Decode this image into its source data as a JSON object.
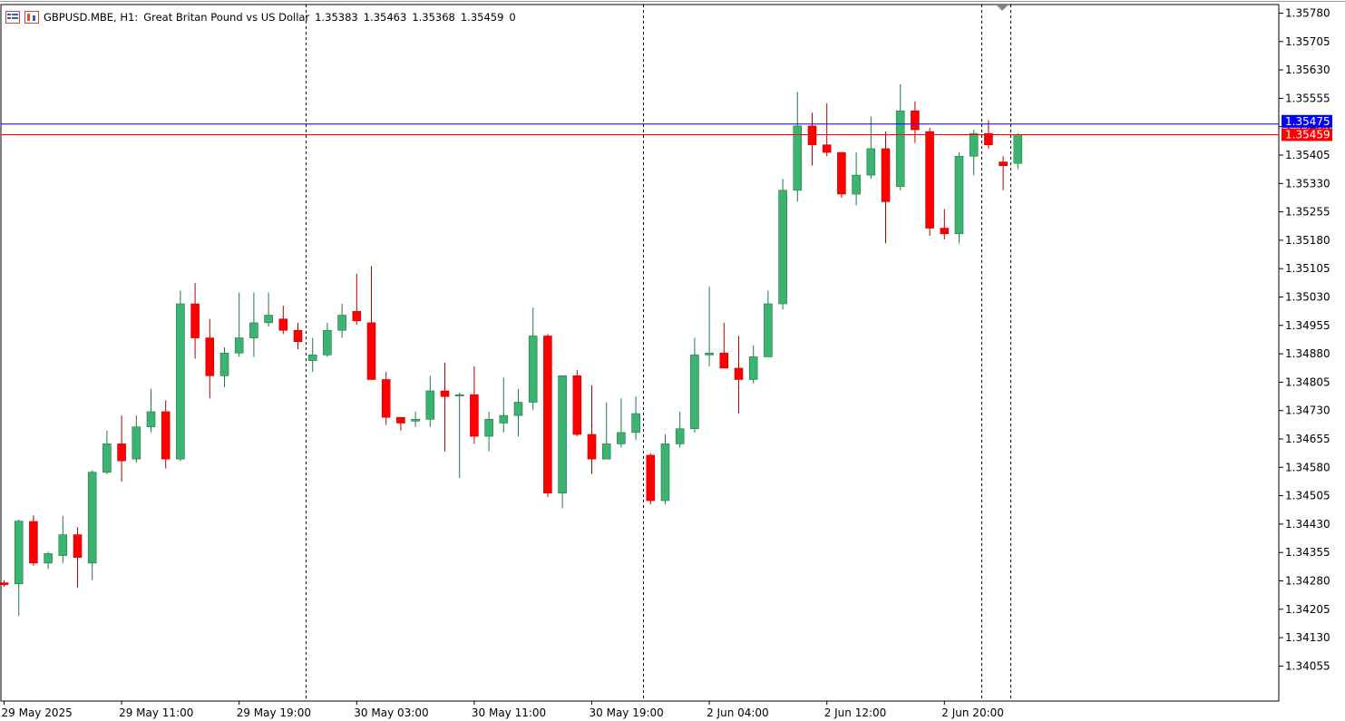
{
  "header": {
    "symbol": "GBPUSD.MBE, H1:",
    "description": "Great Britan Pound vs US Dollar",
    "open": "1.35383",
    "high": "1.35463",
    "low": "1.35368",
    "close": "1.35459",
    "volume": "0",
    "icons": [
      "chart-list-icon",
      "bar-chart-icon"
    ]
  },
  "colors": {
    "bull": "#3cb371",
    "bear": "#ff0000",
    "bid_line": "#0000ff",
    "last_line": "#ff0000",
    "grid": "#000000",
    "axis": "#000000"
  },
  "chart_data": {
    "type": "candlestick",
    "timeframe": "H1",
    "ylim": [
      1.3398,
      1.358
    ],
    "y_ticks": [
      "1.35780",
      "1.35705",
      "1.35630",
      "1.35555",
      "1.35480",
      "1.35405",
      "1.35330",
      "1.35255",
      "1.35180",
      "1.35105",
      "1.35030",
      "1.34955",
      "1.34880",
      "1.34805",
      "1.34730",
      "1.34655",
      "1.34580",
      "1.34505",
      "1.34430",
      "1.34355",
      "1.34280",
      "1.34205",
      "1.34130",
      "1.34055"
    ],
    "x_labels": [
      "29 May 2025",
      "29 May 11:00",
      "29 May 19:00",
      "30 May 03:00",
      "30 May 11:00",
      "30 May 19:00",
      "2 Jun 04:00",
      "2 Jun 12:00",
      "2 Jun 20:00"
    ],
    "period_separators_after_candle": [
      20,
      43,
      66
    ],
    "price_labels": {
      "bid": {
        "value": 1.35475,
        "text": "1.35475"
      },
      "last": {
        "value": 1.35459,
        "text": "1.35459"
      }
    },
    "candles": [
      [
        1.34275,
        1.34282,
        1.34265,
        1.3427
      ],
      [
        1.34272,
        1.34442,
        1.34188,
        1.34438
      ],
      [
        1.34437,
        1.34453,
        1.3432,
        1.34327
      ],
      [
        1.34327,
        1.34357,
        1.34312,
        1.34352
      ],
      [
        1.34347,
        1.34452,
        1.34327,
        1.34402
      ],
      [
        1.34402,
        1.34422,
        1.34262,
        1.34342
      ],
      [
        1.34327,
        1.34572,
        1.34282,
        1.34567
      ],
      [
        1.34567,
        1.34677,
        1.34562,
        1.34642
      ],
      [
        1.34642,
        1.34717,
        1.34542,
        1.34597
      ],
      [
        1.34602,
        1.34717,
        1.34592,
        1.34687
      ],
      [
        1.34687,
        1.34787,
        1.34672,
        1.34727
      ],
      [
        1.34727,
        1.34757,
        1.34577,
        1.34602
      ],
      [
        1.34602,
        1.35047,
        1.34597,
        1.35012
      ],
      [
        1.35012,
        1.35067,
        1.34867,
        1.34922
      ],
      [
        1.34922,
        1.34972,
        1.34762,
        1.34822
      ],
      [
        1.34822,
        1.34897,
        1.34792,
        1.34882
      ],
      [
        1.34882,
        1.35042,
        1.34872,
        1.34922
      ],
      [
        1.34922,
        1.35042,
        1.34872,
        1.34962
      ],
      [
        1.34962,
        1.35042,
        1.34952,
        1.34982
      ],
      [
        1.34972,
        1.35007,
        1.34932,
        1.34942
      ],
      [
        1.34942,
        1.34962,
        1.34892,
        1.34912
      ],
      [
        1.34862,
        1.34922,
        1.34832,
        1.34877
      ],
      [
        1.34877,
        1.34962,
        1.34872,
        1.34942
      ],
      [
        1.34942,
        1.35012,
        1.34922,
        1.34982
      ],
      [
        1.34992,
        1.35092,
        1.34957,
        1.34967
      ],
      [
        1.34962,
        1.35112,
        1.34812,
        1.34812
      ],
      [
        1.34812,
        1.34832,
        1.34692,
        1.34712
      ],
      [
        1.34712,
        1.34712,
        1.34677,
        1.34697
      ],
      [
        1.34702,
        1.34727,
        1.34687,
        1.34707
      ],
      [
        1.34707,
        1.34822,
        1.34687,
        1.34782
      ],
      [
        1.34782,
        1.34857,
        1.34622,
        1.34767
      ],
      [
        1.34772,
        1.34777,
        1.34552,
        1.34772
      ],
      [
        1.34772,
        1.34847,
        1.34642,
        1.34662
      ],
      [
        1.34662,
        1.34727,
        1.34622,
        1.34707
      ],
      [
        1.34697,
        1.34817,
        1.34672,
        1.34717
      ],
      [
        1.34717,
        1.34787,
        1.34662,
        1.34752
      ],
      [
        1.34752,
        1.35002,
        1.34732,
        1.34927
      ],
      [
        1.34927,
        1.34932,
        1.34502,
        1.34512
      ],
      [
        1.34512,
        1.34822,
        1.34472,
        1.34822
      ],
      [
        1.34822,
        1.34837,
        1.34662,
        1.34667
      ],
      [
        1.34667,
        1.34797,
        1.34562,
        1.34602
      ],
      [
        1.34602,
        1.34752,
        1.34602,
        1.34642
      ],
      [
        1.34642,
        1.34762,
        1.34632,
        1.34672
      ],
      [
        1.34672,
        1.34767,
        1.34652,
        1.34722
      ],
      [
        1.34612,
        1.34617,
        1.34482,
        1.34492
      ],
      [
        1.34492,
        1.34667,
        1.34482,
        1.34642
      ],
      [
        1.34642,
        1.34727,
        1.34632,
        1.34682
      ],
      [
        1.34682,
        1.34922,
        1.34672,
        1.34877
      ],
      [
        1.34877,
        1.35057,
        1.34847,
        1.34882
      ],
      [
        1.34882,
        1.34962,
        1.34842,
        1.34842
      ],
      [
        1.34842,
        1.34927,
        1.34722,
        1.34812
      ],
      [
        1.34812,
        1.34902,
        1.34802,
        1.34872
      ],
      [
        1.34872,
        1.35047,
        1.34872,
        1.35012
      ],
      [
        1.35012,
        1.35342,
        1.34997,
        1.35312
      ],
      [
        1.35312,
        1.35572,
        1.35282,
        1.35482
      ],
      [
        1.35482,
        1.35517,
        1.35377,
        1.35432
      ],
      [
        1.35432,
        1.35542,
        1.35402,
        1.35412
      ],
      [
        1.35412,
        1.35412,
        1.35292,
        1.35302
      ],
      [
        1.35302,
        1.35412,
        1.35272,
        1.35352
      ],
      [
        1.35352,
        1.35507,
        1.35342,
        1.35422
      ],
      [
        1.35422,
        1.35467,
        1.35172,
        1.35282
      ],
      [
        1.35322,
        1.35592,
        1.35312,
        1.35522
      ],
      [
        1.35522,
        1.35547,
        1.35437,
        1.35472
      ],
      [
        1.35467,
        1.35477,
        1.35192,
        1.35212
      ],
      [
        1.35212,
        1.35262,
        1.35182,
        1.35197
      ],
      [
        1.35197,
        1.35412,
        1.35172,
        1.35402
      ],
      [
        1.35402,
        1.35472,
        1.35352,
        1.35462
      ],
      [
        1.35462,
        1.35497,
        1.35422,
        1.35432
      ],
      [
        1.35387,
        1.35402,
        1.35312,
        1.35377
      ],
      [
        1.35383,
        1.35463,
        1.35368,
        1.35459
      ]
    ]
  }
}
